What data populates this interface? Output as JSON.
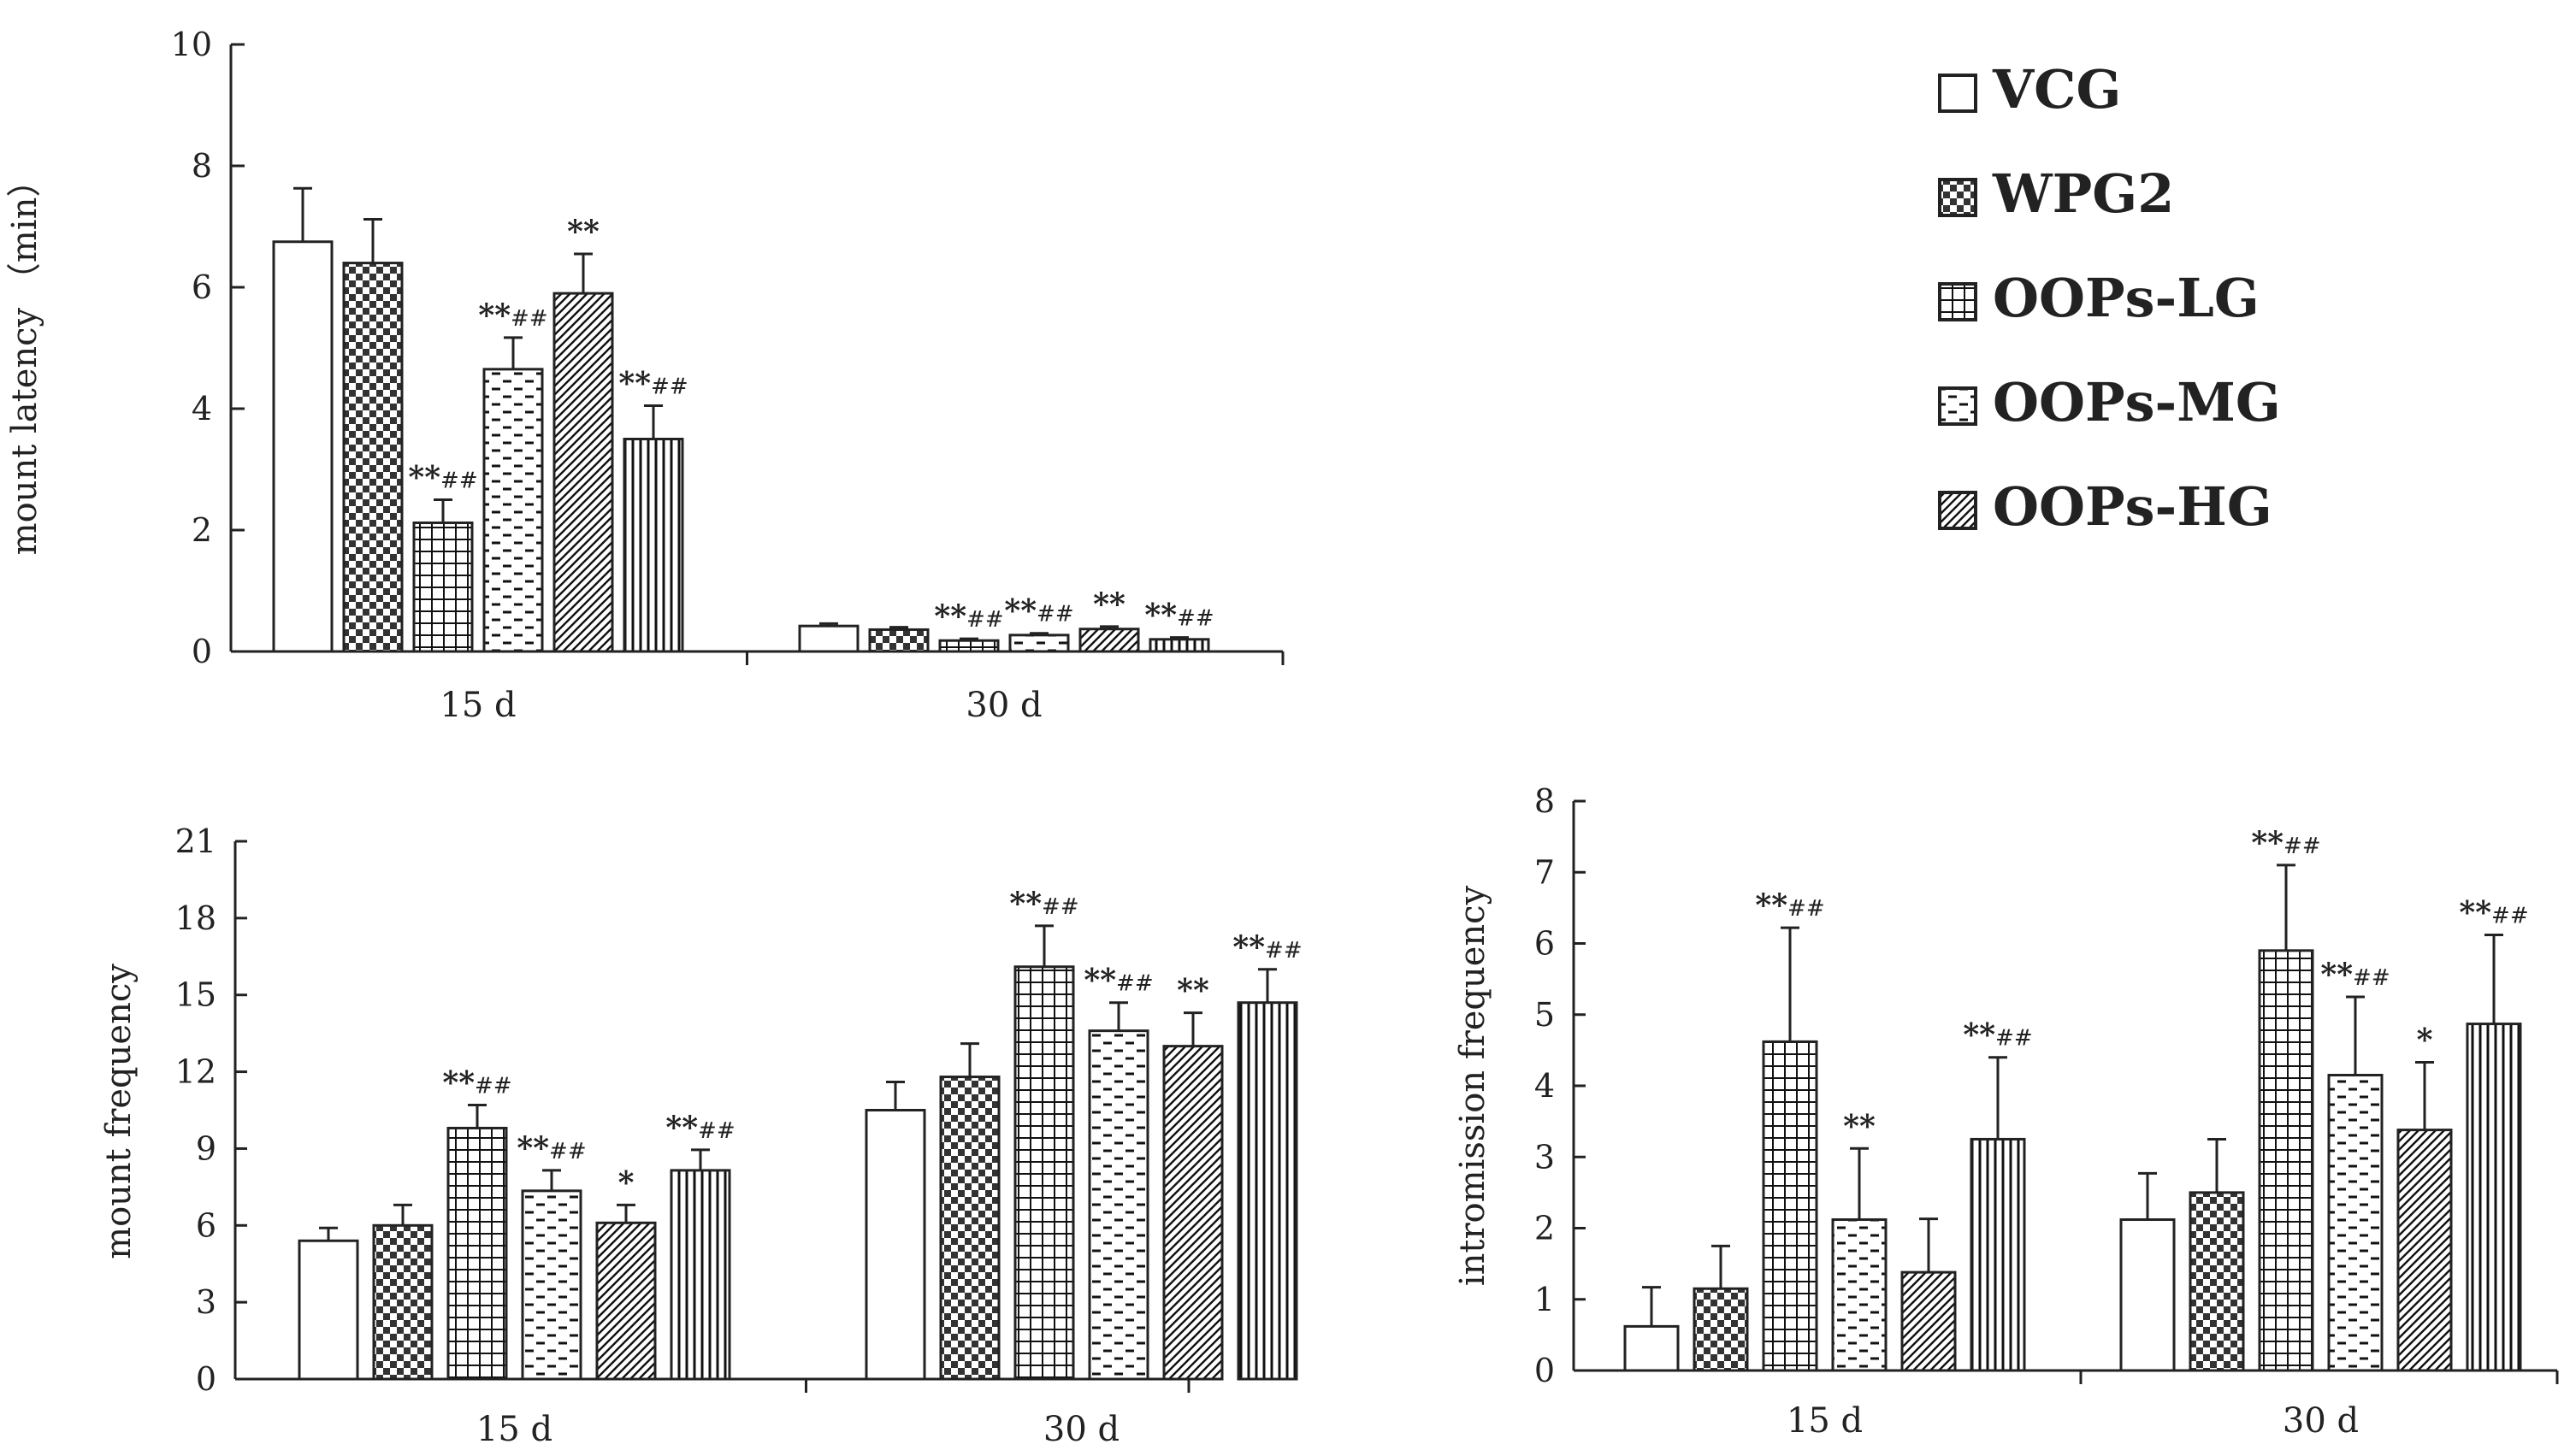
{
  "legend": {
    "items": [
      {
        "name": "VCG",
        "pattern": "blank"
      },
      {
        "name": "WPG2",
        "pattern": "checker"
      },
      {
        "name": "OOPs-LG",
        "pattern": "grid"
      },
      {
        "name": "OOPs-MG",
        "pattern": "dashes"
      },
      {
        "name": "OOPs-HG",
        "pattern": "diag"
      }
    ]
  },
  "colors": {
    "ink": "#222222",
    "background": "#ffffff"
  },
  "chart_data": [
    {
      "id": "mount-latency",
      "type": "bar",
      "ylabel": "mount latency （min）",
      "xlabel": "",
      "ylim": [
        0,
        10
      ],
      "yticks": [
        "0",
        "2",
        "4",
        "6",
        "8",
        "10"
      ],
      "categories": [
        "15 d",
        "30 d"
      ],
      "series": [
        {
          "name": "VCG",
          "pattern": "blank",
          "values": [
            6.75,
            0.42
          ],
          "errors": [
            0.88,
            0.04
          ],
          "sig": [
            "",
            ""
          ]
        },
        {
          "name": "WPG2",
          "pattern": "checker",
          "values": [
            6.4,
            0.36
          ],
          "errors": [
            0.72,
            0.04
          ],
          "sig": [
            "",
            ""
          ]
        },
        {
          "name": "OOPs-LG",
          "pattern": "grid",
          "values": [
            2.12,
            0.18
          ],
          "errors": [
            0.38,
            0.03
          ],
          "sig": [
            "**##",
            "**##"
          ]
        },
        {
          "name": "OOPs-MG",
          "pattern": "dashes",
          "values": [
            4.65,
            0.27
          ],
          "errors": [
            0.52,
            0.03
          ],
          "sig": [
            "**##",
            "**##"
          ]
        },
        {
          "name": "OOPs-HG",
          "pattern": "diag",
          "values": [
            5.9,
            0.37
          ],
          "errors": [
            0.65,
            0.04
          ],
          "sig": [
            "**",
            "**"
          ]
        },
        {
          "name": "",
          "pattern": "vlines",
          "values": [
            3.5,
            0.2
          ],
          "errors": [
            0.55,
            0.03
          ],
          "sig": [
            "**##",
            "**##"
          ]
        }
      ]
    },
    {
      "id": "mount-frequency",
      "type": "bar",
      "ylabel": "mount frequency",
      "xlabel": "",
      "ylim": [
        0,
        21
      ],
      "yticks": [
        "0",
        "3",
        "6",
        "9",
        "12",
        "15",
        "18",
        "21"
      ],
      "categories": [
        "15 d",
        "30 d"
      ],
      "series": [
        {
          "name": "VCG",
          "pattern": "blank",
          "values": [
            5.4,
            10.5
          ],
          "errors": [
            0.5,
            1.1
          ],
          "sig": [
            "",
            ""
          ]
        },
        {
          "name": "WPG2",
          "pattern": "checker",
          "values": [
            6.0,
            11.8
          ],
          "errors": [
            0.8,
            1.3
          ],
          "sig": [
            "",
            ""
          ]
        },
        {
          "name": "OOPs-LG",
          "pattern": "grid",
          "values": [
            9.8,
            16.1
          ],
          "errors": [
            0.9,
            1.6
          ],
          "sig": [
            "**##",
            "**##"
          ]
        },
        {
          "name": "OOPs-MG",
          "pattern": "dashes",
          "values": [
            7.35,
            13.6
          ],
          "errors": [
            0.8,
            1.1
          ],
          "sig": [
            "**##",
            "**##"
          ]
        },
        {
          "name": "OOPs-HG",
          "pattern": "diag",
          "values": [
            6.1,
            13.0
          ],
          "errors": [
            0.7,
            1.3
          ],
          "sig": [
            "*",
            "**"
          ]
        },
        {
          "name": "",
          "pattern": "vlines",
          "values": [
            8.15,
            14.7
          ],
          "errors": [
            0.8,
            1.3
          ],
          "sig": [
            "**##",
            "**##"
          ]
        }
      ]
    },
    {
      "id": "intromission-frequency",
      "type": "bar",
      "ylabel": "intromission frequency",
      "xlabel": "",
      "ylim": [
        0,
        8
      ],
      "yticks": [
        "0",
        "1",
        "2",
        "3",
        "4",
        "5",
        "6",
        "7",
        "8"
      ],
      "categories": [
        "15 d",
        "30 d"
      ],
      "series": [
        {
          "name": "VCG",
          "pattern": "blank",
          "values": [
            0.62,
            2.12
          ],
          "errors": [
            0.55,
            0.65
          ],
          "sig": [
            "",
            ""
          ]
        },
        {
          "name": "WPG2",
          "pattern": "checker",
          "values": [
            1.15,
            2.5
          ],
          "errors": [
            0.6,
            0.75
          ],
          "sig": [
            "",
            ""
          ]
        },
        {
          "name": "OOPs-LG",
          "pattern": "grid",
          "values": [
            4.62,
            5.9
          ],
          "errors": [
            1.6,
            1.2
          ],
          "sig": [
            "**##",
            "**##"
          ]
        },
        {
          "name": "OOPs-MG",
          "pattern": "dashes",
          "values": [
            2.12,
            4.15
          ],
          "errors": [
            1.0,
            1.1
          ],
          "sig": [
            "**",
            "**##"
          ]
        },
        {
          "name": "OOPs-HG",
          "pattern": "diag",
          "values": [
            1.38,
            3.38
          ],
          "errors": [
            0.75,
            0.95
          ],
          "sig": [
            "",
            "*"
          ]
        },
        {
          "name": "",
          "pattern": "vlines",
          "values": [
            3.25,
            4.87
          ],
          "errors": [
            1.15,
            1.25
          ],
          "sig": [
            "**##",
            "**##"
          ]
        }
      ]
    }
  ]
}
